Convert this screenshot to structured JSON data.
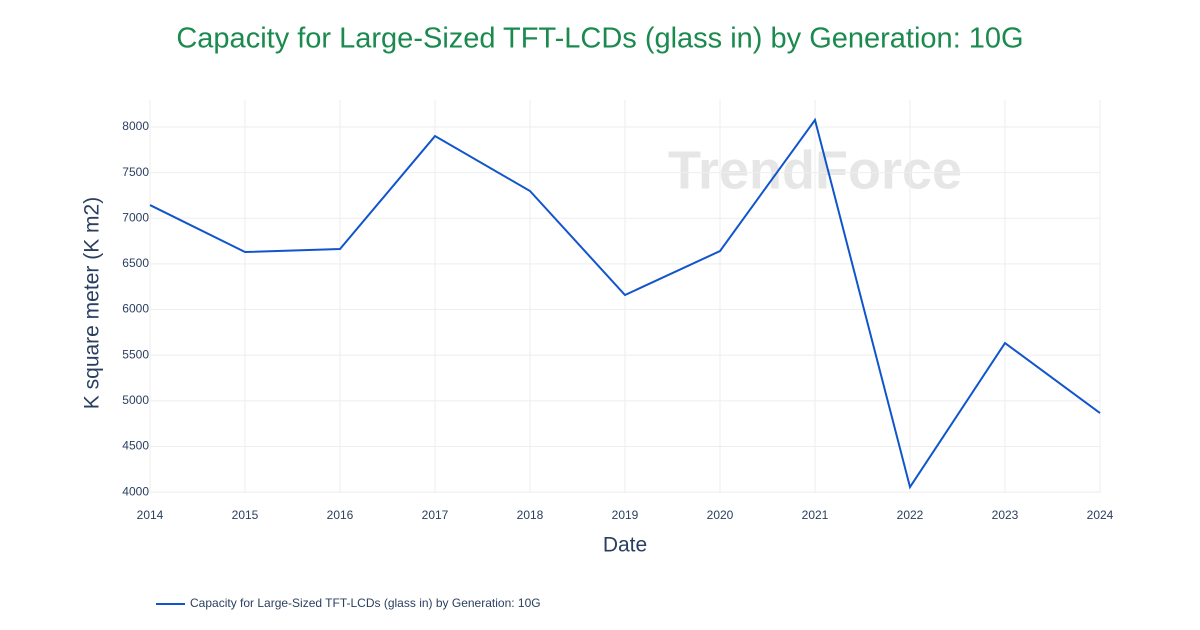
{
  "chart_data": {
    "type": "line",
    "title": "Capacity for Large-Sized TFT-LCDs (glass in) by Generation: 10G",
    "x_label": "Date",
    "y_label": "K square meter (K m2)",
    "watermark": "TrendForce",
    "x": [
      2014,
      2015,
      2016,
      2017,
      2018,
      2019,
      2020,
      2021,
      2022,
      2023,
      2024
    ],
    "series": [
      {
        "name": "Capacity for Large-Sized TFT-LCDs (glass in) by Generation: 10G",
        "color": "#1155cc",
        "values": [
          7145,
          6630,
          6663,
          7901,
          7299,
          6159,
          6641,
          8077,
          4055,
          5633,
          4866
        ]
      }
    ],
    "xlim": [
      2014,
      2024
    ],
    "xticks": [
      2014,
      2015,
      2016,
      2017,
      2018,
      2019,
      2020,
      2021,
      2022,
      2023,
      2024
    ],
    "ylim": [
      3990,
      8296
    ],
    "yticks": [
      4000,
      4500,
      5000,
      5500,
      6000,
      6500,
      7000,
      7500,
      8000
    ],
    "grid": true,
    "legend": "bottom-left"
  }
}
